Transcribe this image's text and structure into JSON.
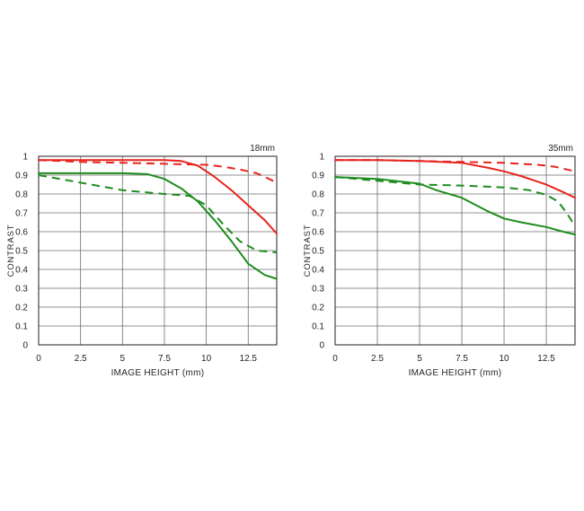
{
  "chart_data": [
    {
      "type": "line",
      "focal_label": "18mm",
      "xlabel": "IMAGE HEIGHT (mm)",
      "ylabel": "CONTRAST",
      "xlim": [
        0,
        14.2
      ],
      "ylim": [
        0,
        1
      ],
      "x_ticks": [
        "0",
        "2.5",
        "5",
        "7.5",
        "10",
        "12.5"
      ],
      "y_ticks": [
        "0",
        "0.1",
        "0.2",
        "0.3",
        "0.4",
        "0.5",
        "0.6",
        "0.7",
        "0.8",
        "0.9",
        "1"
      ],
      "grid": true,
      "series": [
        {
          "color": "#e8231c",
          "dash": "solid",
          "x": [
            0,
            2.5,
            5,
            7.5,
            8.5,
            9.5,
            10.5,
            11.5,
            12.5,
            13.5,
            14.2
          ],
          "y": [
            0.98,
            0.98,
            0.98,
            0.98,
            0.975,
            0.95,
            0.89,
            0.82,
            0.74,
            0.66,
            0.59
          ]
        },
        {
          "color": "#e8231c",
          "dash": "dashed",
          "x": [
            0,
            2.5,
            5,
            7.5,
            10,
            11,
            12,
            13,
            13.5,
            14.2
          ],
          "y": [
            0.98,
            0.97,
            0.965,
            0.96,
            0.955,
            0.945,
            0.93,
            0.91,
            0.89,
            0.86
          ]
        },
        {
          "color": "#1e8c1e",
          "dash": "solid",
          "x": [
            0,
            2.5,
            5,
            6.5,
            7.5,
            8.5,
            9.5,
            10.5,
            11.5,
            12.5,
            13.5,
            14.2
          ],
          "y": [
            0.91,
            0.91,
            0.91,
            0.905,
            0.88,
            0.83,
            0.76,
            0.66,
            0.55,
            0.43,
            0.37,
            0.35
          ]
        },
        {
          "color": "#1e8c1e",
          "dash": "dashed",
          "x": [
            0,
            2.5,
            5,
            7.5,
            9,
            10,
            11,
            12,
            13,
            14.2
          ],
          "y": [
            0.9,
            0.86,
            0.82,
            0.8,
            0.79,
            0.74,
            0.64,
            0.55,
            0.5,
            0.49
          ]
        }
      ]
    },
    {
      "type": "line",
      "focal_label": "35mm",
      "xlabel": "IMAGE HEIGHT (mm)",
      "ylabel": "CONTRAST",
      "xlim": [
        0,
        14.2
      ],
      "ylim": [
        0,
        1
      ],
      "x_ticks": [
        "0",
        "2.5",
        "5",
        "7.5",
        "10",
        "12.5"
      ],
      "y_ticks": [
        "0",
        "0.1",
        "0.2",
        "0.3",
        "0.4",
        "0.5",
        "0.6",
        "0.7",
        "0.8",
        "0.9",
        "1"
      ],
      "grid": true,
      "series": [
        {
          "color": "#e8231c",
          "dash": "solid",
          "x": [
            0,
            2.5,
            5,
            7.5,
            9,
            10,
            11,
            12,
            12.5,
            13,
            13.5,
            14.2
          ],
          "y": [
            0.98,
            0.98,
            0.975,
            0.965,
            0.94,
            0.92,
            0.895,
            0.865,
            0.85,
            0.83,
            0.81,
            0.78
          ]
        },
        {
          "color": "#e8231c",
          "dash": "dashed",
          "x": [
            0,
            2.5,
            5,
            7.5,
            10,
            11,
            12,
            13,
            14.2
          ],
          "y": [
            0.98,
            0.98,
            0.975,
            0.97,
            0.965,
            0.96,
            0.955,
            0.945,
            0.92
          ]
        },
        {
          "color": "#1e8c1e",
          "dash": "solid",
          "x": [
            0,
            2.5,
            5,
            6,
            7.5,
            9,
            10,
            11,
            12.5,
            13.5,
            14.2
          ],
          "y": [
            0.89,
            0.88,
            0.855,
            0.82,
            0.78,
            0.71,
            0.67,
            0.65,
            0.625,
            0.6,
            0.585
          ]
        },
        {
          "color": "#1e8c1e",
          "dash": "dashed",
          "x": [
            0,
            2.5,
            5,
            7.5,
            10,
            11.5,
            12.5,
            13.2,
            13.7,
            14.2
          ],
          "y": [
            0.89,
            0.87,
            0.85,
            0.845,
            0.835,
            0.82,
            0.795,
            0.76,
            0.7,
            0.63
          ]
        }
      ]
    }
  ]
}
